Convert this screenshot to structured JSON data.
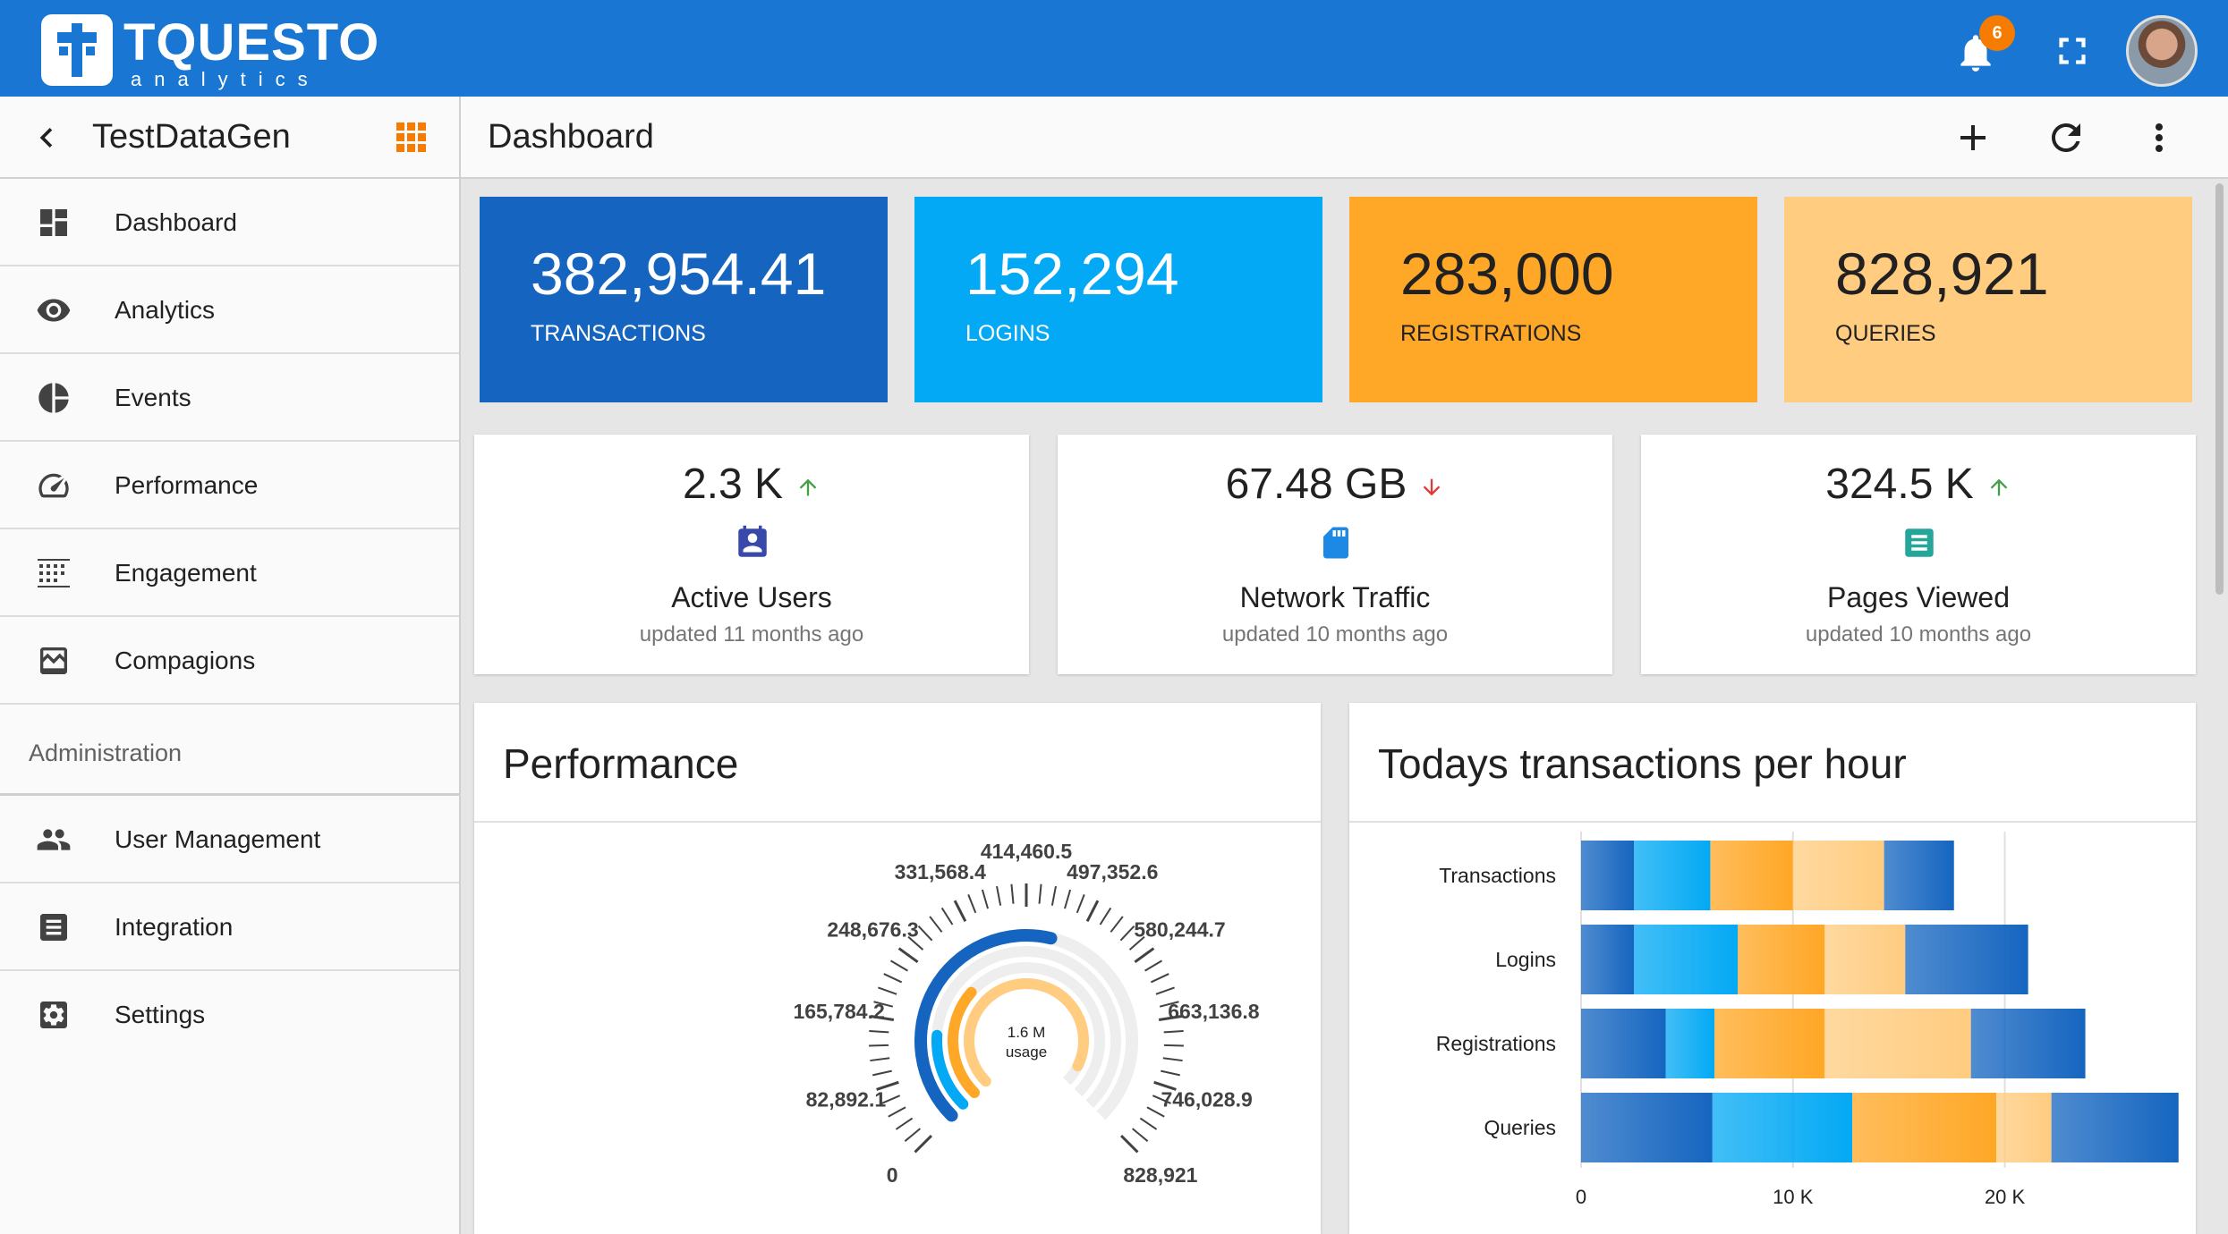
{
  "topbar": {
    "logo_text": "TQUESTO",
    "logo_sub": "analytics",
    "notification_count": "6",
    "icons": [
      "bell-icon",
      "fullscreen-icon",
      "user-avatar"
    ]
  },
  "project": {
    "title": "TestDataGen"
  },
  "header": {
    "title": "Dashboard"
  },
  "sidebar": {
    "items": [
      {
        "label": "Dashboard",
        "icon": "dashboard-icon"
      },
      {
        "label": "Analytics",
        "icon": "eye-icon"
      },
      {
        "label": "Events",
        "icon": "pie-icon"
      },
      {
        "label": "Performance",
        "icon": "speed-icon"
      },
      {
        "label": "Engagement",
        "icon": "grid-dots-icon"
      },
      {
        "label": "Compagions",
        "icon": "chart-line-icon"
      }
    ],
    "section_label": "Administration",
    "admin_items": [
      {
        "label": "User Management",
        "icon": "users-icon"
      },
      {
        "label": "Integration",
        "icon": "list-icon"
      },
      {
        "label": "Settings",
        "icon": "gear-icon"
      }
    ]
  },
  "stats": [
    {
      "value": "382,954.41",
      "label": "TRANSACTIONS",
      "bg": "#1565c0",
      "fg": "#ffffff"
    },
    {
      "value": "152,294",
      "label": "LOGINS",
      "bg": "#03a9f4",
      "fg": "#ffffff"
    },
    {
      "value": "283,000",
      "label": "REGISTRATIONS",
      "bg": "#ffa726",
      "fg": "#212121"
    },
    {
      "value": "828,921",
      "label": "QUERIES",
      "bg": "#ffcc80",
      "fg": "#212121"
    }
  ],
  "kpis": [
    {
      "value": "2.3 K",
      "trend": "up",
      "title": "Active Users",
      "sub": "updated 11 months ago",
      "icon": "contact-card-icon",
      "icon_color": "#3949ab"
    },
    {
      "value": "67.48 GB",
      "trend": "down",
      "title": "Network Traffic",
      "sub": "updated 10 months ago",
      "icon": "sd-card-icon",
      "icon_color": "#1e88e5"
    },
    {
      "value": "324.5 K",
      "trend": "up",
      "title": "Pages Viewed",
      "sub": "updated 10 months ago",
      "icon": "document-icon",
      "icon_color": "#26a69a"
    }
  ],
  "performance": {
    "title": "Performance",
    "gauge_center_value": "1.6 M",
    "gauge_center_label": "usage",
    "scale_labels": [
      "0",
      "82,892.1",
      "165,784.2",
      "248,676.3",
      "331,568.4",
      "414,460.5",
      "497,352.6",
      "580,244.7",
      "663,136.8",
      "746,028.9",
      "828,921"
    ],
    "scale_min": 0,
    "scale_max": 828921,
    "series_fractions": [
      {
        "color": "#1565c0",
        "fraction": 0.55
      },
      {
        "color": "#03a9f4",
        "fraction": 0.18
      },
      {
        "color": "#ffa726",
        "fraction": 0.32
      },
      {
        "color": "#ffcc80",
        "fraction": 0.93
      }
    ]
  },
  "transactions_chart": {
    "title": "Todays transactions per hour"
  },
  "chart_data": {
    "type": "bar",
    "orientation": "horizontal",
    "stacked": true,
    "categories": [
      "Transactions",
      "Logins",
      "Registrations",
      "Queries"
    ],
    "series": [
      {
        "values": [
          2500,
          2500,
          4000,
          6200
        ],
        "color": "#1565c0"
      },
      {
        "values": [
          3600,
          4900,
          2300,
          6600
        ],
        "color": "#03a9f4"
      },
      {
        "values": [
          3900,
          4100,
          5200,
          6800
        ],
        "color": "#ffa726"
      },
      {
        "values": [
          4300,
          3800,
          6900,
          2600
        ],
        "color": "#ffcc80"
      },
      {
        "values": [
          3300,
          5800,
          5400,
          6000
        ],
        "color": "#1565c0"
      }
    ],
    "xlim": [
      0,
      28000
    ],
    "xticks": [
      0,
      10000,
      20000
    ],
    "xtick_labels": [
      "0",
      "10 K",
      "20 K"
    ],
    "grid": true
  }
}
